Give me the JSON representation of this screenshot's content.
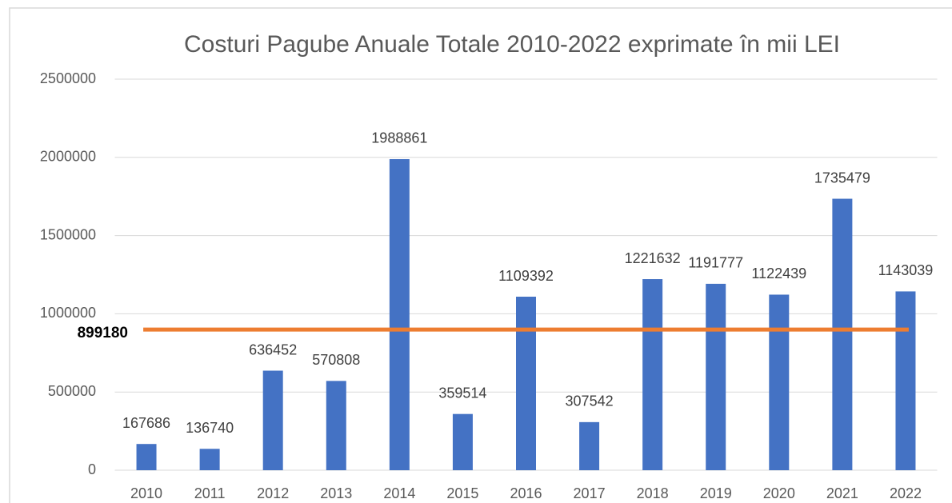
{
  "chart_data": {
    "type": "bar",
    "title": "Costuri Pagube Anuale Totale 2010-2022 exprimate în mii LEI",
    "categories": [
      "2010",
      "2011",
      "2012",
      "2013",
      "2014",
      "2015",
      "2016",
      "2017",
      "2018",
      "2019",
      "2020",
      "2021",
      "2022"
    ],
    "values": [
      167686,
      136740,
      636452,
      570808,
      1988861,
      359514,
      1109392,
      307542,
      1221632,
      1191777,
      1122439,
      1735479,
      1143039
    ],
    "color": "#4472c4",
    "ylim": [
      0,
      2500000
    ],
    "yticks": [
      0,
      500000,
      1000000,
      1500000,
      2000000,
      2500000
    ],
    "grid": true,
    "reference_line": {
      "value": 899180,
      "color": "#ed7d31"
    }
  }
}
